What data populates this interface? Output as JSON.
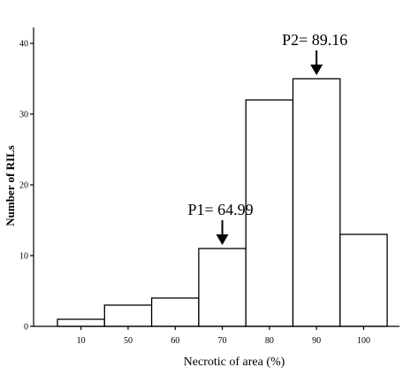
{
  "chart_data": {
    "type": "bar",
    "xlabel": "Necrotic of area (%)",
    "ylabel": "Number of RILs",
    "ylim": [
      0,
      42
    ],
    "yticks": [
      0,
      10,
      20,
      30,
      40
    ],
    "categories": [
      "10",
      "50",
      "60",
      "70",
      "80",
      "90",
      "100"
    ],
    "values": [
      1,
      3,
      4,
      11,
      32,
      35,
      13
    ],
    "grid": false,
    "annotations": [
      {
        "label": "P1= 64.99",
        "category": "70",
        "points_to_value": 11
      },
      {
        "label": "P2= 89.16",
        "category": "90",
        "points_to_value": 35
      }
    ]
  }
}
